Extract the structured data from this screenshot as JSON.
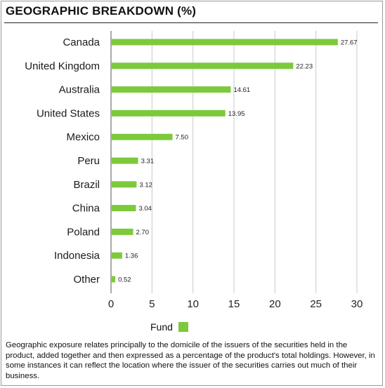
{
  "title": "GEOGRAPHIC BREAKDOWN (%)",
  "chart_data": {
    "type": "bar",
    "orientation": "horizontal",
    "categories": [
      "Canada",
      "United Kingdom",
      "Australia",
      "United States",
      "Mexico",
      "Peru",
      "Brazil",
      "China",
      "Poland",
      "Indonesia",
      "Other"
    ],
    "series": [
      {
        "name": "Fund",
        "color": "#7dc93c",
        "values": [
          27.67,
          22.23,
          14.61,
          13.95,
          7.5,
          3.31,
          3.12,
          3.04,
          2.7,
          1.36,
          0.52
        ],
        "labels": [
          "27.67",
          "22.23",
          "14.61",
          "13.95",
          "7.50",
          "3.31",
          "3.12",
          "3.04",
          "2.70",
          "1.36",
          "0.52"
        ]
      }
    ],
    "xlim": [
      0,
      30
    ],
    "xticks": [
      0,
      5,
      10,
      15,
      20,
      25,
      30
    ],
    "grid": true,
    "legend_position": "bottom"
  },
  "legend": {
    "label": "Fund",
    "color": "#7dc93c"
  },
  "footnote": "Geographic exposure relates principally to the domicile of the issuers of the securities held in the product, added together and then expressed as a percentage of the product's total holdings. However, in some instances it can reflect the location where the issuer of the securities carries out much of their business."
}
